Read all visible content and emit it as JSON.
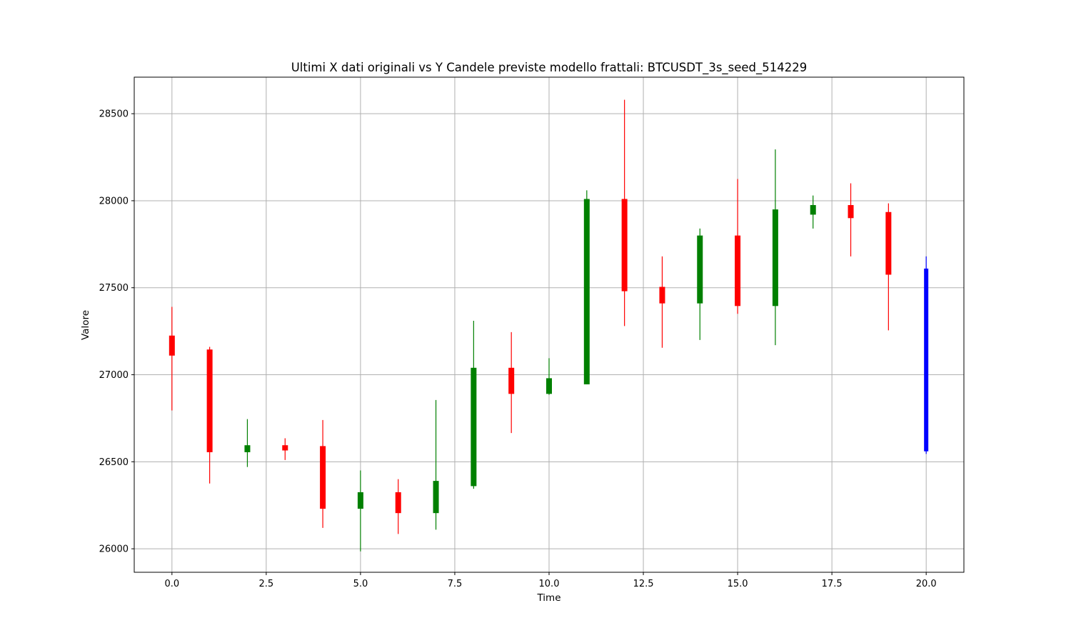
{
  "chart_data": {
    "type": "candlestick",
    "title": "Ultimi X dati originali vs Y Candele previste modello frattali: BTCUSDT_3s_seed_514229",
    "xlabel": "Time",
    "ylabel": "Valore",
    "xlim": [
      -1.0,
      21.0
    ],
    "ylim": [
      25865,
      28710
    ],
    "xticks": [
      0.0,
      2.5,
      5.0,
      7.5,
      10.0,
      12.5,
      15.0,
      17.5,
      20.0
    ],
    "xtick_labels": [
      "0.0",
      "2.5",
      "5.0",
      "7.5",
      "10.0",
      "12.5",
      "15.0",
      "17.5",
      "20.0"
    ],
    "yticks": [
      26000,
      26500,
      27000,
      27500,
      28000,
      28500
    ],
    "ytick_labels": [
      "26000",
      "26500",
      "27000",
      "27500",
      "28000",
      "28500"
    ],
    "grid": true,
    "colors": {
      "up": "#008000",
      "down": "#ff0000",
      "predicted": "#0000ff"
    },
    "candles": [
      {
        "t": 0,
        "open": 27225,
        "high": 27390,
        "low": 26795,
        "close": 27110,
        "kind": "down"
      },
      {
        "t": 1,
        "open": 27145,
        "high": 27160,
        "low": 26375,
        "close": 26555,
        "kind": "down"
      },
      {
        "t": 2,
        "open": 26555,
        "high": 26745,
        "low": 26470,
        "close": 26595,
        "kind": "up"
      },
      {
        "t": 3,
        "open": 26595,
        "high": 26635,
        "low": 26510,
        "close": 26565,
        "kind": "down"
      },
      {
        "t": 4,
        "open": 26590,
        "high": 26740,
        "low": 26120,
        "close": 26230,
        "kind": "down"
      },
      {
        "t": 5,
        "open": 26230,
        "high": 26450,
        "low": 25985,
        "close": 26325,
        "kind": "up"
      },
      {
        "t": 6,
        "open": 26325,
        "high": 26400,
        "low": 26085,
        "close": 26205,
        "kind": "down"
      },
      {
        "t": 7,
        "open": 26205,
        "high": 26855,
        "low": 26110,
        "close": 26390,
        "kind": "up"
      },
      {
        "t": 8,
        "open": 26360,
        "high": 27310,
        "low": 26345,
        "close": 27040,
        "kind": "up"
      },
      {
        "t": 9,
        "open": 27040,
        "high": 27245,
        "low": 26665,
        "close": 26890,
        "kind": "down"
      },
      {
        "t": 10,
        "open": 26890,
        "high": 27095,
        "low": 26885,
        "close": 26980,
        "kind": "up"
      },
      {
        "t": 11,
        "open": 26945,
        "high": 28060,
        "low": 26945,
        "close": 28010,
        "kind": "up"
      },
      {
        "t": 12,
        "open": 28010,
        "high": 28580,
        "low": 27280,
        "close": 27480,
        "kind": "down"
      },
      {
        "t": 13,
        "open": 27505,
        "high": 27680,
        "low": 27155,
        "close": 27410,
        "kind": "down"
      },
      {
        "t": 14,
        "open": 27410,
        "high": 27840,
        "low": 27200,
        "close": 27800,
        "kind": "up"
      },
      {
        "t": 15,
        "open": 27800,
        "high": 28125,
        "low": 27350,
        "close": 27395,
        "kind": "down"
      },
      {
        "t": 16,
        "open": 27395,
        "high": 28295,
        "low": 27170,
        "close": 27950,
        "kind": "up"
      },
      {
        "t": 17,
        "open": 27920,
        "high": 28030,
        "low": 27840,
        "close": 27975,
        "kind": "up"
      },
      {
        "t": 18,
        "open": 27975,
        "high": 28100,
        "low": 27680,
        "close": 27900,
        "kind": "down"
      },
      {
        "t": 19,
        "open": 27935,
        "high": 27985,
        "low": 27255,
        "close": 27575,
        "kind": "down"
      },
      {
        "t": 20,
        "open": 27610,
        "high": 27680,
        "low": 26545,
        "close": 26560,
        "kind": "predicted"
      }
    ]
  }
}
